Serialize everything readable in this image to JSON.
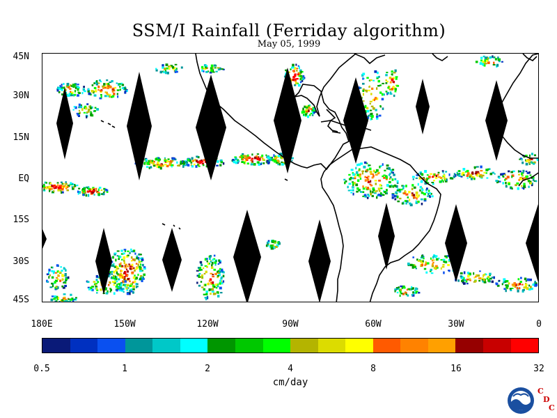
{
  "header": {
    "title": "SSM/I Rainfall (Ferriday algorithm)",
    "date": "May 05, 1999"
  },
  "axes": {
    "lat_labels": [
      "45N",
      "30N",
      "15N",
      "EQ",
      "15S",
      "30S",
      "45S"
    ],
    "lon_labels": [
      "180E",
      "150W",
      "120W",
      "90W",
      "60W",
      "30W",
      "0"
    ]
  },
  "colorbar": {
    "tick_labels": [
      "0.5",
      "1",
      "2",
      "4",
      "8",
      "16",
      "32"
    ],
    "units": "cm/day",
    "colors": [
      "#0a1a78",
      "#0030c0",
      "#0a50f0",
      "#00969a",
      "#00c8c8",
      "#00ffff",
      "#009600",
      "#00c800",
      "#00ff00",
      "#b4b400",
      "#dcdc00",
      "#ffff00",
      "#ff5a00",
      "#ff8200",
      "#ffa000",
      "#960000",
      "#c80000",
      "#ff0000"
    ]
  },
  "chart_data": {
    "type": "heatmap",
    "title": "SSM/I Rainfall (Ferriday algorithm)",
    "subtitle": "May 05, 1999",
    "xlim": [
      -180,
      0
    ],
    "ylim": [
      -45,
      45
    ],
    "xticks": [
      "180E",
      "150W",
      "120W",
      "90W",
      "60W",
      "30W",
      "0"
    ],
    "yticks": [
      "45N",
      "30N",
      "15N",
      "EQ",
      "15S",
      "30S",
      "45S"
    ],
    "colorbar_levels": [
      0.5,
      1,
      2,
      4,
      8,
      16,
      32
    ],
    "colorbar_unit": "cm/day",
    "scale": "log2"
  },
  "logos": {
    "noaa": "NOAA",
    "cdc": [
      "C",
      "D",
      "C"
    ]
  }
}
